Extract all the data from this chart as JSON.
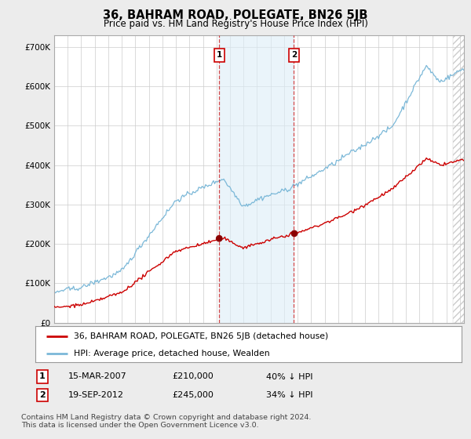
{
  "title": "36, BAHRAM ROAD, POLEGATE, BN26 5JB",
  "subtitle": "Price paid vs. HM Land Registry's House Price Index (HPI)",
  "yticks": [
    0,
    100000,
    200000,
    300000,
    400000,
    500000,
    600000,
    700000
  ],
  "ytick_labels": [
    "£0",
    "£100K",
    "£200K",
    "£300K",
    "£400K",
    "£500K",
    "£600K",
    "£700K"
  ],
  "ylim": [
    0,
    730000
  ],
  "xlim_left": 1995.0,
  "xlim_right": 2025.3,
  "hpi_color": "#7bb8d8",
  "price_color": "#cc0000",
  "marker_color": "#8b0000",
  "sale1_x": 2007.21,
  "sale1_price": 210000,
  "sale2_x": 2012.72,
  "sale2_price": 245000,
  "vline_color": "#cc0000",
  "shade_color": "#ddeef8",
  "shade_alpha": 0.6,
  "hatch_color": "#cccccc",
  "legend_red_label": "36, BAHRAM ROAD, POLEGATE, BN26 5JB (detached house)",
  "legend_blue_label": "HPI: Average price, detached house, Wealden",
  "table_rows": [
    {
      "num": "1",
      "date": "15-MAR-2007",
      "price": "£210,000",
      "pct": "40% ↓ HPI"
    },
    {
      "num": "2",
      "date": "19-SEP-2012",
      "price": "£245,000",
      "pct": "34% ↓ HPI"
    }
  ],
  "footnote": "Contains HM Land Registry data © Crown copyright and database right 2024.\nThis data is licensed under the Open Government Licence v3.0.",
  "bg_color": "#ececec",
  "plot_bg_color": "#ffffff",
  "grid_color": "#cccccc",
  "hatch_start": 2024.5
}
